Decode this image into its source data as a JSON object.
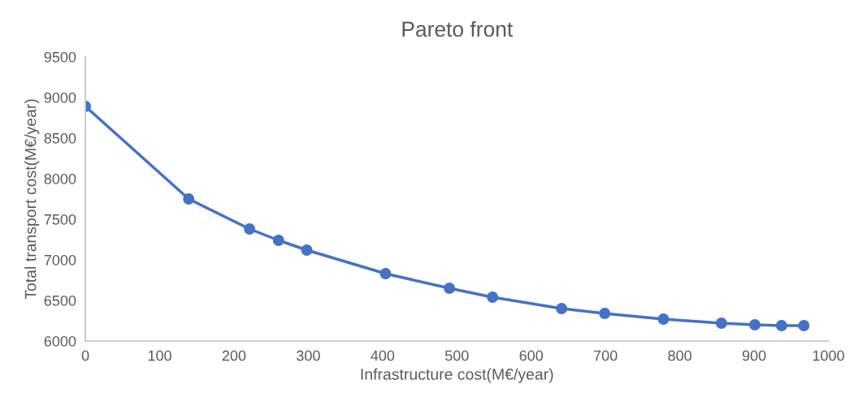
{
  "chart_data": {
    "type": "line",
    "title": "Pareto front",
    "xlabel": "Infrastructure cost(M€/year)",
    "ylabel": "Total transport cost(M€/year)",
    "series": [
      {
        "color": "#4472c4",
        "x": [
          0,
          139,
          221,
          260,
          298,
          404,
          490,
          548,
          641,
          699,
          778,
          856,
          901,
          937,
          967
        ],
        "values": [
          8890,
          7750,
          7380,
          7240,
          7120,
          6830,
          6650,
          6540,
          6400,
          6340,
          6270,
          6220,
          6200,
          6190,
          6190
        ]
      }
    ],
    "xlim": [
      0,
      1000
    ],
    "xticks": [
      0,
      100,
      200,
      300,
      400,
      500,
      600,
      700,
      800,
      900,
      1000
    ],
    "ylim": [
      6000,
      9500
    ],
    "yticks": [
      6000,
      6500,
      7000,
      7500,
      8000,
      8500,
      9000,
      9500
    ],
    "grid": false,
    "legend": false,
    "marker": "circle",
    "line_style": "solid"
  }
}
